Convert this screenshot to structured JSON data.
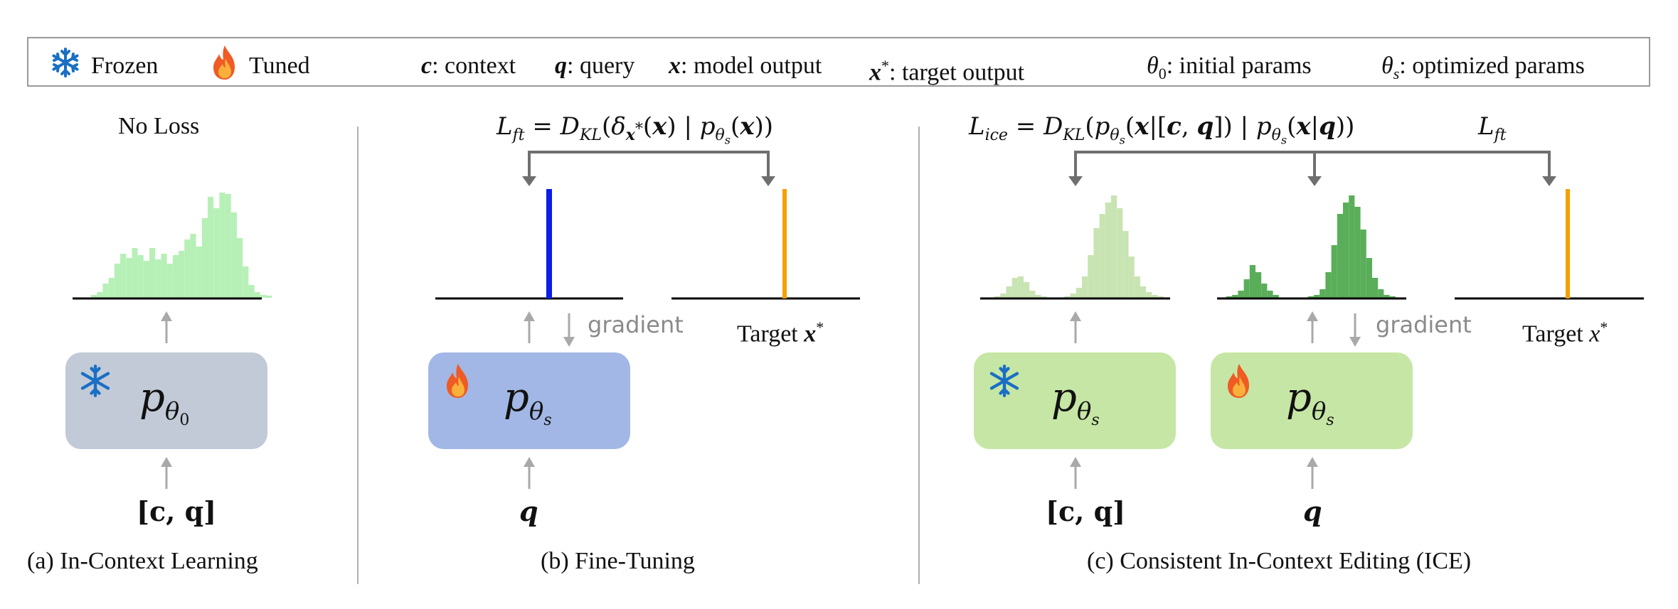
{
  "legend": {
    "frozen_icon": "snowflake-icon",
    "frozen_label": "Frozen",
    "tuned_icon": "flame-icon",
    "tuned_label": "Tuned",
    "c_sym": "c",
    "c_desc": ": context",
    "q_sym": "q",
    "q_desc": ": query",
    "x_sym": "x",
    "x_desc": ": model output",
    "xstar_sym": "x",
    "xstar_sup": "*",
    "xstar_desc": ": target output",
    "theta0_sym": "θ",
    "theta0_sub": "0",
    "theta0_desc": ": initial params",
    "thetas_sym": "θ",
    "thetas_sub": "s",
    "thetas_desc": ": optimized params"
  },
  "panels": {
    "a": {
      "caption": "(a) In-Context Learning",
      "loss_label": "No Loss",
      "model_label": "p",
      "model_sub": "θ",
      "model_subsub": "0",
      "input": "[c, q]"
    },
    "b": {
      "caption": "(b) Fine-Tuning",
      "loss": "L_ft = D_KL(δ_x*(x) | p_θs(x))",
      "model_label": "p",
      "model_sub": "θ",
      "model_subsub": "s",
      "input": "q",
      "gradient_label": "gradient",
      "target_label": "Target ",
      "target_sym": "x",
      "target_sup": "*"
    },
    "c": {
      "caption": "(c) Consistent In-Context Editing (ICE)",
      "loss_ice": "L_ice = D_KL(p_θs(x|[c, q]) | p_θs(x|q))",
      "loss_ft": "L_ft",
      "model_label": "p",
      "model_sub": "θ",
      "model_subsub": "s",
      "input_left": "[c, q]",
      "input_right": "q",
      "gradient_label": "gradient",
      "target_label": "Target ",
      "target_sym": "x",
      "target_sup": "*"
    }
  },
  "colors": {
    "frozen_box": "#c1cad6",
    "tuned_box_b": "#a2b7e5",
    "ice_box": "#c6e6a5",
    "hist_light": "#b7f0b7",
    "hist_ice_light": "#c9e4b3",
    "hist_ice_dark": "#5aae5a",
    "bar_blue": "#0b1ee6",
    "bar_orange": "#f4a100",
    "arrow": "#6f6f6f",
    "arrow_light": "#a9a9a9",
    "snowflake": "#1a6fc4"
  }
}
